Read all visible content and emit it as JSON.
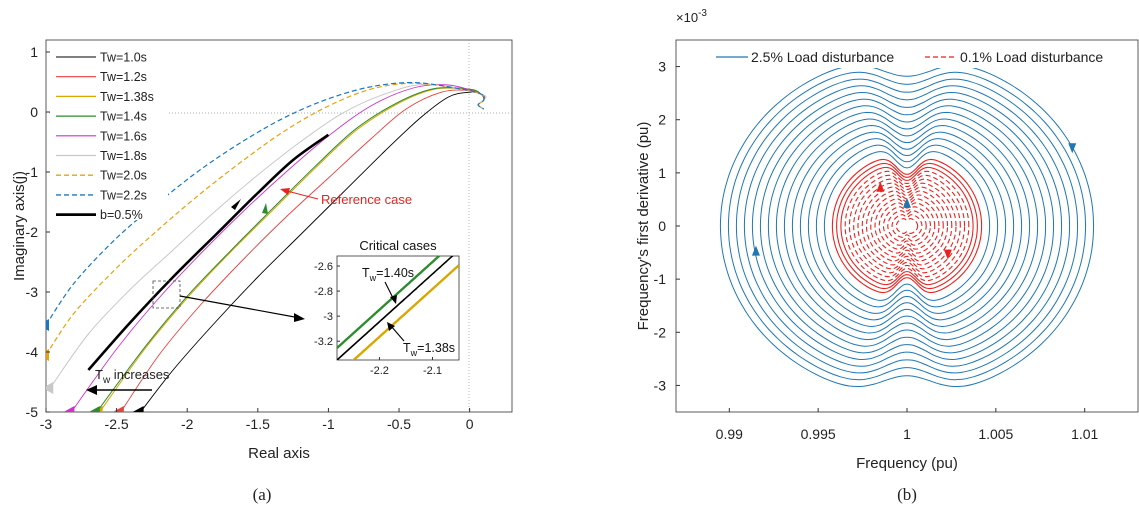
{
  "chart_data": [
    {
      "id": "a",
      "type": "line",
      "caption": "(a)",
      "xlabel": "Real axis",
      "ylabel": "Imaginary axis(j)",
      "xlim": [
        -3,
        0.3
      ],
      "ylim": [
        -5,
        1.2
      ],
      "xticks": [
        "-3",
        "-2.5",
        "-2",
        "-1.5",
        "-1",
        "-0.5",
        "0"
      ],
      "xtick_values": [
        -3,
        -2.5,
        -2,
        -1.5,
        -1,
        -0.5,
        0
      ],
      "yticks": [
        "1",
        "0",
        "-1",
        "-2",
        "-3",
        "-4",
        "-5"
      ],
      "ytick_values": [
        1,
        0,
        -1,
        -2,
        -3,
        -4,
        -5
      ],
      "grid": false,
      "legend_position": "top-left",
      "series": [
        {
          "name": "Tw=1.0s",
          "color": "#000000",
          "dash": "solid",
          "width": 0.9,
          "x": [
            -2.33,
            -2.1,
            -1.8,
            -1.5,
            -1.2,
            -0.9,
            -0.6,
            -0.35,
            -0.15,
            0.0,
            0.08
          ],
          "y": [
            -5.0,
            -4.3,
            -3.5,
            -2.75,
            -2.05,
            -1.35,
            -0.65,
            -0.1,
            0.25,
            0.33,
            0.3
          ]
        },
        {
          "name": "Tw=1.2s",
          "color": "#e8413e",
          "dash": "solid",
          "width": 0.9,
          "x": [
            -2.47,
            -2.2,
            -1.9,
            -1.6,
            -1.3,
            -1.0,
            -0.7,
            -0.45,
            -0.2,
            0.0,
            0.08
          ],
          "y": [
            -5.0,
            -4.05,
            -3.2,
            -2.45,
            -1.75,
            -1.1,
            -0.45,
            0.05,
            0.33,
            0.36,
            0.3
          ]
        },
        {
          "name": "Tw=1.38s",
          "color": "#d9a700",
          "dash": "solid",
          "width": 1.0,
          "x": [
            -2.62,
            -2.3,
            -2.0,
            -1.7,
            -1.4,
            -1.1,
            -0.8,
            -0.5,
            -0.25,
            0.0,
            0.08
          ],
          "y": [
            -5.0,
            -3.95,
            -3.1,
            -2.35,
            -1.65,
            -0.95,
            -0.3,
            0.15,
            0.38,
            0.38,
            0.3
          ]
        },
        {
          "name": "Tw=1.4s",
          "color": "#2e8b2e",
          "dash": "solid",
          "width": 1.0,
          "x": [
            -2.64,
            -2.3,
            -2.0,
            -1.7,
            -1.4,
            -1.1,
            -0.8,
            -0.5,
            -0.25,
            0.0,
            0.08
          ],
          "y": [
            -5.0,
            -3.92,
            -3.07,
            -2.33,
            -1.62,
            -0.92,
            -0.27,
            0.17,
            0.39,
            0.38,
            0.3
          ]
        },
        {
          "name": "Tw=1.6s",
          "color": "#cc33cc",
          "dash": "solid",
          "width": 0.9,
          "x": [
            -2.82,
            -2.5,
            -2.2,
            -1.9,
            -1.6,
            -1.3,
            -1.0,
            -0.7,
            -0.4,
            -0.15,
            0.08
          ],
          "y": [
            -5.0,
            -3.95,
            -3.1,
            -2.35,
            -1.65,
            -1.0,
            -0.4,
            0.1,
            0.4,
            0.45,
            0.3
          ]
        },
        {
          "name": "Tw=1.8s",
          "color": "#c8c8c8",
          "dash": "solid",
          "width": 1.0,
          "x": [
            -2.97,
            -2.7,
            -2.4,
            -2.1,
            -1.8,
            -1.5,
            -1.2,
            -0.9,
            -0.6,
            -0.3,
            0.08
          ],
          "y": [
            -4.6,
            -3.7,
            -2.95,
            -2.3,
            -1.65,
            -1.05,
            -0.5,
            -0.02,
            0.3,
            0.46,
            0.3
          ]
        },
        {
          "name": "Tw=2.0s",
          "color": "#e8a20c",
          "dash": "dash",
          "width": 1.2,
          "x": [
            -3.0,
            -2.8,
            -2.5,
            -2.2,
            -1.9,
            -1.6,
            -1.3,
            -1.0,
            -0.7,
            -0.4,
            -0.1,
            0.08
          ],
          "y": [
            -4.05,
            -3.35,
            -2.6,
            -1.95,
            -1.35,
            -0.8,
            -0.3,
            0.1,
            0.38,
            0.48,
            0.4,
            0.3
          ]
        },
        {
          "name": "Tw=2.2s",
          "color": "#1a78c2",
          "dash": "dash",
          "width": 1.2,
          "x": [
            -3.0,
            -2.8,
            -2.5,
            -2.2,
            -1.9,
            -1.6,
            -1.3,
            -1.0,
            -0.7,
            -0.4,
            -0.1,
            0.08
          ],
          "y": [
            -3.55,
            -2.85,
            -2.1,
            -1.5,
            -0.95,
            -0.48,
            -0.08,
            0.22,
            0.42,
            0.49,
            0.4,
            0.3
          ]
        },
        {
          "name": "b=0.5%",
          "color": "#000000",
          "dash": "solid",
          "width": 2.6,
          "x": [
            -2.7,
            -2.4,
            -2.1,
            -1.8,
            -1.5,
            -1.25,
            -1.0
          ],
          "y": [
            -4.3,
            -3.5,
            -2.75,
            -2.05,
            -1.35,
            -0.8,
            -0.38
          ]
        }
      ],
      "annotations": {
        "reference": "Reference case",
        "inset_title": "Critical cases",
        "tw_increases": "T",
        "tw_increases_sub": "w",
        "tw_increases_rest": " increases",
        "inset_label_140": "T",
        "inset_label_140_sub": "w",
        "inset_label_140_rest": "=1.40s",
        "inset_label_138": "T",
        "inset_label_138_sub": "w",
        "inset_label_138_rest": "=1.38s"
      },
      "inset": {
        "title": "Critical cases",
        "xlim": [
          -2.28,
          -2.05
        ],
        "ylim": [
          -3.35,
          -2.52
        ],
        "xticks": [
          "-2.2",
          "-2.1"
        ],
        "xtick_values": [
          -2.2,
          -2.1
        ],
        "yticks": [
          "-2.6",
          "-2.8",
          "-3",
          "-3.2"
        ],
        "ytick_values": [
          -2.6,
          -2.8,
          -3,
          -3.2
        ]
      }
    },
    {
      "id": "b",
      "type": "line",
      "caption": "(b)",
      "xlabel": "Frequency (pu)",
      "ylabel": "Frequency's first derivative (pu)",
      "xlim": [
        0.987,
        1.013
      ],
      "ylim": [
        -0.0035,
        0.0035
      ],
      "exponent_label": "×10",
      "exponent_power": "-3",
      "xticks": [
        "0.99",
        "0.995",
        "1",
        "1.005",
        "1.01"
      ],
      "xtick_values": [
        0.99,
        0.995,
        1.0,
        1.005,
        1.01
      ],
      "yticks": [
        "3",
        "2",
        "1",
        "0",
        "-1",
        "-2",
        "-3"
      ],
      "ytick_values": [
        3,
        2,
        1,
        0,
        -1,
        -2,
        -3
      ],
      "grid": false,
      "legend_position": "top",
      "series": [
        {
          "name": "2.5% Load disturbance",
          "color": "#1f77b4",
          "dash": "solid"
        },
        {
          "name": "0.1% Load disturbance",
          "color": "#e8231f",
          "dash": "dash"
        }
      ]
    }
  ]
}
